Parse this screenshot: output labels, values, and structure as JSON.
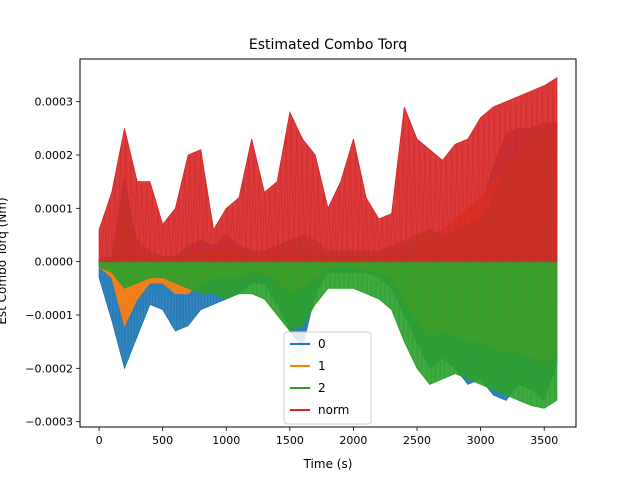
{
  "chart_data": {
    "type": "line",
    "title": "Estimated Combo Torq",
    "xlabel": "Time (s)",
    "ylabel": "Est Combo Torq (Nm)",
    "xlim": [
      -150,
      3750
    ],
    "ylim": [
      -0.00031,
      0.00038
    ],
    "xticks": [
      0,
      500,
      1000,
      1500,
      2000,
      2500,
      3000,
      3500
    ],
    "xtick_labels": [
      "0",
      "500",
      "1000",
      "1500",
      "2000",
      "2500",
      "3000",
      "3500"
    ],
    "yticks": [
      -0.0003,
      -0.0002,
      -0.0001,
      0.0,
      0.0001,
      0.0002,
      0.0003
    ],
    "ytick_labels": [
      "−0.0003",
      "−0.0002",
      "−0.0001",
      "0.0000",
      "0.0001",
      "0.0002",
      "0.0003"
    ],
    "grid": false,
    "legend_position": "lower-center",
    "x": [
      0,
      100,
      200,
      300,
      400,
      500,
      600,
      700,
      800,
      900,
      1000,
      1100,
      1200,
      1300,
      1400,
      1500,
      1600,
      1700,
      1800,
      1900,
      2000,
      2100,
      2200,
      2300,
      2400,
      2500,
      2600,
      2700,
      2800,
      2900,
      3000,
      3100,
      3200,
      3300,
      3400,
      3500,
      3600
    ],
    "series": [
      {
        "name": "0",
        "color": "#1f77b4",
        "upper": [
          5e-06,
          1e-05,
          0.00016,
          2e-05,
          5e-06,
          5e-06,
          1e-05,
          3e-05,
          4e-05,
          3e-05,
          5e-05,
          3e-05,
          2e-05,
          2e-05,
          3e-05,
          3e-05,
          3e-05,
          2e-05,
          1e-05,
          1e-05,
          1e-05,
          1e-05,
          1e-05,
          2e-05,
          3e-05,
          3e-05,
          4e-05,
          4e-05,
          5e-05,
          6e-05,
          0.0001,
          0.00018,
          0.00024,
          0.00025,
          0.00025,
          0.00026,
          0.00026
        ],
        "lower": [
          -3e-05,
          -0.00011,
          -0.0002,
          -0.00014,
          -8e-05,
          -9e-05,
          -0.00013,
          -0.00012,
          -9e-05,
          -8e-05,
          -7e-05,
          -6e-05,
          -4e-05,
          -4e-05,
          -8e-05,
          -0.00013,
          -0.00016,
          -6e-05,
          -2e-05,
          -2e-05,
          -2e-05,
          -2e-05,
          -3e-05,
          -5e-05,
          -0.0001,
          -0.00015,
          -0.0002,
          -0.00018,
          -0.0002,
          -0.00023,
          -0.00022,
          -0.00025,
          -0.00026,
          -0.00023,
          -0.00024,
          -0.00026,
          -0.00019
        ]
      },
      {
        "name": "1",
        "color": "#ff7f0e",
        "upper": [
          3e-06,
          5e-06,
          3e-05,
          1e-05,
          5e-06,
          5e-06,
          5e-06,
          1e-05,
          2e-05,
          2e-05,
          2e-05,
          1e-05,
          1e-05,
          1e-05,
          2e-05,
          2e-05,
          1e-05,
          1e-05,
          5e-06,
          5e-06,
          5e-06,
          5e-06,
          1e-05,
          1e-05,
          2e-05,
          3e-05,
          4e-05,
          6e-05,
          8e-05,
          0.0001,
          0.00012,
          0.00015,
          0.00017,
          0.00019,
          0.0002,
          0.00022,
          0.00023
        ],
        "lower": [
          -1e-05,
          -3e-05,
          -0.00012,
          -7e-05,
          -4e-05,
          -4e-05,
          -6e-05,
          -6e-05,
          -4e-05,
          -3e-05,
          -3e-05,
          -3e-05,
          -2e-05,
          -2e-05,
          -4e-05,
          -6e-05,
          -5e-05,
          -3e-05,
          -1e-05,
          -1e-05,
          -1e-05,
          -1.5e-05,
          -2e-05,
          -3e-05,
          -7e-05,
          -0.00011,
          -0.00014,
          -0.00013,
          -0.00014,
          -0.00015,
          -0.00015,
          -0.00016,
          -0.00017,
          -0.00017,
          -0.00018,
          -0.00019,
          -0.00017
        ]
      },
      {
        "name": "2",
        "color": "#2ca02c",
        "upper": [
          2e-06,
          5e-06,
          0.00012,
          4e-05,
          2e-05,
          1e-05,
          1e-05,
          1.5e-05,
          2e-05,
          2e-05,
          2e-05,
          2e-05,
          2e-05,
          2e-05,
          3e-05,
          4e-05,
          5e-05,
          4e-05,
          2e-05,
          2e-05,
          2e-05,
          2e-05,
          2e-05,
          3e-05,
          4e-05,
          5e-05,
          6e-05,
          5e-05,
          6e-05,
          7e-05,
          8e-05,
          0.00012,
          0.00018,
          0.0002,
          0.00024,
          0.00025,
          0.00026
        ],
        "lower": [
          -1e-05,
          -2e-05,
          -5e-05,
          -4e-05,
          -3e-05,
          -3e-05,
          -4e-05,
          -5e-05,
          -6e-05,
          -6e-05,
          -7e-05,
          -6e-05,
          -6e-05,
          -7e-05,
          -0.0001,
          -0.00013,
          -0.00012,
          -8e-05,
          -5e-05,
          -5e-05,
          -5e-05,
          -6e-05,
          -7e-05,
          -9e-05,
          -0.00015,
          -0.0002,
          -0.00023,
          -0.00022,
          -0.00021,
          -0.00022,
          -0.00023,
          -0.00024,
          -0.00025,
          -0.00026,
          -0.00027,
          -0.000275,
          -0.00026
        ]
      },
      {
        "name": "norm",
        "color": "#d62728",
        "upper": [
          6e-05,
          0.00013,
          0.00025,
          0.00015,
          0.00015,
          7e-05,
          0.0001,
          0.0002,
          0.00021,
          6e-05,
          0.0001,
          0.00012,
          0.00023,
          0.00013,
          0.00015,
          0.00028,
          0.00023,
          0.0002,
          0.0001,
          0.00015,
          0.00023,
          0.00012,
          8e-05,
          9e-05,
          0.00029,
          0.00023,
          0.00021,
          0.00019,
          0.00022,
          0.00023,
          0.00027,
          0.00029,
          0.0003,
          0.00031,
          0.00032,
          0.00033,
          0.000345
        ],
        "lower": [
          0.0,
          0.0,
          0.0,
          0.0,
          0.0,
          0.0,
          0.0,
          0.0,
          0.0,
          0.0,
          0.0,
          0.0,
          0.0,
          0.0,
          0.0,
          0.0,
          0.0,
          0.0,
          0.0,
          0.0,
          0.0,
          0.0,
          0.0,
          0.0,
          0.0,
          0.0,
          0.0,
          0.0,
          0.0,
          0.0,
          0.0,
          0.0,
          0.0,
          0.0,
          0.0,
          0.0,
          0.0
        ]
      }
    ]
  }
}
